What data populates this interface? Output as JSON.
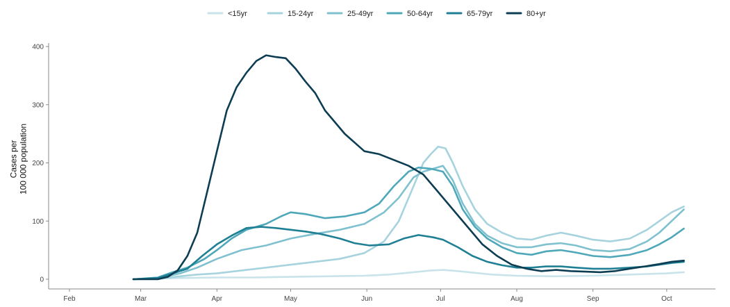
{
  "chart_data": {
    "type": "line",
    "title": "",
    "xlabel": "",
    "ylabel_lines": [
      "Cases per",
      "100 000 population"
    ],
    "ylim": [
      0,
      400
    ],
    "y_ticks": [
      0,
      100,
      200,
      300,
      400
    ],
    "x_ticks": [
      {
        "label": "Feb",
        "x": 0
      },
      {
        "label": "Mar",
        "x": 29
      },
      {
        "label": "Apr",
        "x": 60
      },
      {
        "label": "May",
        "x": 90
      },
      {
        "label": "Jun",
        "x": 121
      },
      {
        "label": "Jul",
        "x": 151
      },
      {
        "label": "Aug",
        "x": 182
      },
      {
        "label": "Sep",
        "x": 213
      },
      {
        "label": "Oct",
        "x": 243
      }
    ],
    "x_unit_note": "",
    "legend_position": "top",
    "grid": false,
    "series": [
      {
        "name": "<15yr",
        "color": "#c8e3ea",
        "points": [
          [
            26,
            0
          ],
          [
            36,
            1
          ],
          [
            45,
            2
          ],
          [
            60,
            3
          ],
          [
            75,
            3
          ],
          [
            90,
            4
          ],
          [
            105,
            5
          ],
          [
            120,
            6
          ],
          [
            130,
            8
          ],
          [
            140,
            12
          ],
          [
            147,
            15
          ],
          [
            152,
            16
          ],
          [
            158,
            14
          ],
          [
            165,
            11
          ],
          [
            172,
            8
          ],
          [
            182,
            6
          ],
          [
            197,
            5
          ],
          [
            213,
            6
          ],
          [
            228,
            8
          ],
          [
            243,
            10
          ],
          [
            250,
            12
          ]
        ]
      },
      {
        "name": "15-24yr",
        "color": "#a6d3de",
        "points": [
          [
            26,
            0
          ],
          [
            36,
            1
          ],
          [
            45,
            5
          ],
          [
            52,
            8
          ],
          [
            60,
            10
          ],
          [
            70,
            15
          ],
          [
            80,
            20
          ],
          [
            90,
            25
          ],
          [
            100,
            30
          ],
          [
            110,
            35
          ],
          [
            120,
            45
          ],
          [
            128,
            65
          ],
          [
            134,
            100
          ],
          [
            140,
            160
          ],
          [
            144,
            200
          ],
          [
            147,
            215
          ],
          [
            150,
            228
          ],
          [
            153,
            225
          ],
          [
            156,
            200
          ],
          [
            160,
            160
          ],
          [
            165,
            120
          ],
          [
            170,
            95
          ],
          [
            176,
            80
          ],
          [
            182,
            70
          ],
          [
            188,
            68
          ],
          [
            194,
            75
          ],
          [
            200,
            80
          ],
          [
            206,
            75
          ],
          [
            213,
            68
          ],
          [
            220,
            65
          ],
          [
            228,
            70
          ],
          [
            235,
            85
          ],
          [
            240,
            100
          ],
          [
            245,
            115
          ],
          [
            250,
            125
          ]
        ]
      },
      {
        "name": "25-49yr",
        "color": "#7fc1cf",
        "points": [
          [
            26,
            0
          ],
          [
            36,
            2
          ],
          [
            45,
            10
          ],
          [
            52,
            20
          ],
          [
            60,
            35
          ],
          [
            70,
            50
          ],
          [
            80,
            58
          ],
          [
            90,
            70
          ],
          [
            100,
            78
          ],
          [
            110,
            85
          ],
          [
            120,
            95
          ],
          [
            128,
            115
          ],
          [
            134,
            140
          ],
          [
            140,
            175
          ],
          [
            144,
            185
          ],
          [
            148,
            190
          ],
          [
            152,
            195
          ],
          [
            156,
            170
          ],
          [
            160,
            130
          ],
          [
            165,
            95
          ],
          [
            170,
            75
          ],
          [
            176,
            62
          ],
          [
            182,
            55
          ],
          [
            188,
            55
          ],
          [
            194,
            60
          ],
          [
            200,
            62
          ],
          [
            206,
            58
          ],
          [
            213,
            50
          ],
          [
            220,
            48
          ],
          [
            228,
            52
          ],
          [
            235,
            65
          ],
          [
            240,
            80
          ],
          [
            245,
            100
          ],
          [
            250,
            120
          ]
        ]
      },
      {
        "name": "50-64yr",
        "color": "#4ea8b9",
        "points": [
          [
            26,
            0
          ],
          [
            36,
            3
          ],
          [
            42,
            12
          ],
          [
            48,
            20
          ],
          [
            55,
            35
          ],
          [
            60,
            50
          ],
          [
            66,
            70
          ],
          [
            72,
            85
          ],
          [
            80,
            95
          ],
          [
            86,
            108
          ],
          [
            90,
            115
          ],
          [
            96,
            112
          ],
          [
            104,
            105
          ],
          [
            112,
            108
          ],
          [
            120,
            115
          ],
          [
            126,
            130
          ],
          [
            132,
            160
          ],
          [
            138,
            185
          ],
          [
            142,
            192
          ],
          [
            147,
            190
          ],
          [
            152,
            185
          ],
          [
            156,
            160
          ],
          [
            160,
            120
          ],
          [
            165,
            90
          ],
          [
            170,
            70
          ],
          [
            176,
            55
          ],
          [
            182,
            45
          ],
          [
            188,
            42
          ],
          [
            194,
            48
          ],
          [
            200,
            50
          ],
          [
            206,
            46
          ],
          [
            213,
            40
          ],
          [
            220,
            38
          ],
          [
            228,
            42
          ],
          [
            235,
            50
          ],
          [
            240,
            60
          ],
          [
            245,
            72
          ],
          [
            250,
            87
          ]
        ]
      },
      {
        "name": "65-79yr",
        "color": "#1f7f94",
        "points": [
          [
            26,
            0
          ],
          [
            36,
            2
          ],
          [
            42,
            10
          ],
          [
            48,
            18
          ],
          [
            54,
            40
          ],
          [
            60,
            60
          ],
          [
            66,
            75
          ],
          [
            72,
            88
          ],
          [
            78,
            90
          ],
          [
            84,
            88
          ],
          [
            90,
            85
          ],
          [
            96,
            82
          ],
          [
            102,
            78
          ],
          [
            110,
            70
          ],
          [
            116,
            62
          ],
          [
            122,
            58
          ],
          [
            130,
            60
          ],
          [
            136,
            70
          ],
          [
            142,
            76
          ],
          [
            148,
            72
          ],
          [
            152,
            68
          ],
          [
            158,
            55
          ],
          [
            164,
            40
          ],
          [
            170,
            30
          ],
          [
            176,
            24
          ],
          [
            182,
            20
          ],
          [
            188,
            20
          ],
          [
            194,
            22
          ],
          [
            200,
            22
          ],
          [
            206,
            20
          ],
          [
            213,
            18
          ],
          [
            220,
            18
          ],
          [
            228,
            20
          ],
          [
            235,
            22
          ],
          [
            240,
            25
          ],
          [
            245,
            28
          ],
          [
            250,
            30
          ]
        ]
      },
      {
        "name": "80+yr",
        "color": "#0c3d52",
        "points": [
          [
            26,
            0
          ],
          [
            36,
            0
          ],
          [
            40,
            4
          ],
          [
            44,
            15
          ],
          [
            48,
            40
          ],
          [
            52,
            80
          ],
          [
            56,
            150
          ],
          [
            60,
            220
          ],
          [
            64,
            290
          ],
          [
            68,
            330
          ],
          [
            72,
            355
          ],
          [
            76,
            375
          ],
          [
            80,
            385
          ],
          [
            84,
            382
          ],
          [
            88,
            380
          ],
          [
            92,
            362
          ],
          [
            96,
            340
          ],
          [
            100,
            320
          ],
          [
            104,
            290
          ],
          [
            108,
            270
          ],
          [
            112,
            250
          ],
          [
            116,
            235
          ],
          [
            120,
            220
          ],
          [
            126,
            215
          ],
          [
            132,
            205
          ],
          [
            138,
            195
          ],
          [
            144,
            180
          ],
          [
            150,
            150
          ],
          [
            156,
            120
          ],
          [
            162,
            90
          ],
          [
            168,
            60
          ],
          [
            174,
            40
          ],
          [
            180,
            25
          ],
          [
            186,
            18
          ],
          [
            192,
            14
          ],
          [
            198,
            16
          ],
          [
            204,
            14
          ],
          [
            210,
            13
          ],
          [
            216,
            12
          ],
          [
            222,
            14
          ],
          [
            228,
            18
          ],
          [
            234,
            22
          ],
          [
            240,
            26
          ],
          [
            245,
            30
          ],
          [
            250,
            32
          ]
        ]
      }
    ]
  }
}
